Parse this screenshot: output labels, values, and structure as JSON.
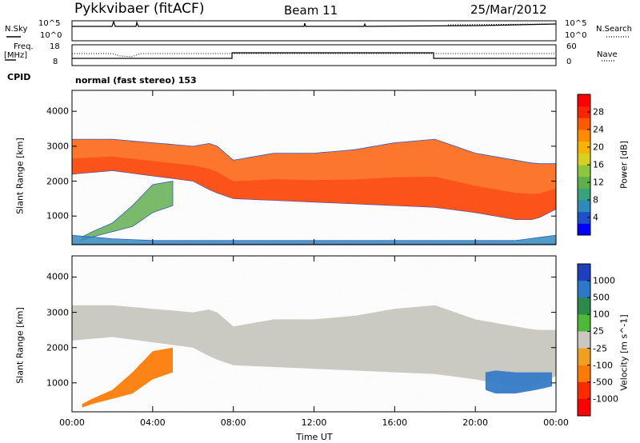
{
  "header": {
    "station": "Pykkvibaer (fitACF)",
    "beam": "Beam 11",
    "date": "25/Mar/2012"
  },
  "status_panel": {
    "nsky_label": "N.Sky",
    "nsearch_label": "N.Search",
    "power_ticks_left": [
      "10^5",
      "10^0"
    ],
    "power_ticks_right": [
      "10^5",
      "10^0"
    ],
    "freq_label": "Freq.",
    "freq_unit": "[MHz]",
    "freq_ticks": [
      "18",
      "8"
    ],
    "nave_label": "Nave",
    "nave_ticks": [
      "60",
      "0"
    ],
    "cpid_label": "CPID",
    "cpid_value": "normal (fast stereo) 153"
  },
  "chart_data": [
    {
      "type": "heatmap",
      "name": "power",
      "ylabel": "Slant Range [km]",
      "ylim": [
        180,
        4600
      ],
      "yticks": [
        1000,
        2000,
        3000,
        4000
      ],
      "xlim": [
        0,
        24
      ],
      "xticks": [
        "00:00",
        "04:00",
        "08:00",
        "12:00",
        "16:00",
        "20:00",
        "00:00"
      ],
      "colorbar": {
        "label": "Power [dB]",
        "ticks": [
          "28",
          "24",
          "20",
          "16",
          "12",
          "8",
          "4"
        ],
        "colors": [
          "#0000ff",
          "#1e4fc8",
          "#2e8ab8",
          "#3aa27a",
          "#5fae4a",
          "#8cc63e",
          "#d8d020",
          "#f4b400",
          "#ff8c00",
          "#ff5a00",
          "#ff2400",
          "#ff0000"
        ]
      },
      "bands": [
        {
          "label": "lower echo band",
          "time": [
            0.5,
            1,
            2,
            3,
            4,
            5
          ],
          "range_low": [
            300,
            400,
            550,
            700,
            1100,
            1300
          ],
          "range_high": [
            400,
            550,
            800,
            1300,
            1900,
            2000
          ],
          "power_db": 12
        },
        {
          "label": "main echo band",
          "time": [
            0,
            2,
            4,
            6,
            7,
            8,
            10,
            12,
            14,
            16,
            18,
            20,
            22,
            23,
            24
          ],
          "range_low": [
            2200,
            2300,
            2150,
            2000,
            1700,
            1500,
            1450,
            1400,
            1350,
            1300,
            1250,
            1100,
            900,
            900,
            1200
          ],
          "range_high": [
            3200,
            3200,
            3100,
            3000,
            3100,
            2600,
            2800,
            2800,
            2900,
            3100,
            3200,
            2800,
            2600,
            2500,
            2500
          ],
          "power_db": 26
        },
        {
          "label": "near-range echoes",
          "time": [
            0,
            2,
            4,
            6,
            8,
            10,
            12,
            14,
            16,
            18,
            20,
            22,
            24
          ],
          "range_low": [
            200,
            200,
            200,
            200,
            200,
            200,
            200,
            200,
            200,
            200,
            200,
            200,
            200
          ],
          "range_high": [
            450,
            350,
            300,
            300,
            300,
            300,
            300,
            300,
            300,
            300,
            300,
            300,
            450
          ],
          "power_db": 6
        }
      ]
    },
    {
      "type": "heatmap",
      "name": "velocity",
      "ylabel": "Slant Range [km]",
      "ylim": [
        180,
        4600
      ],
      "yticks": [
        1000,
        2000,
        3000,
        4000
      ],
      "xlabel": "Time UT",
      "xlim": [
        0,
        24
      ],
      "xticks": [
        "00:00",
        "04:00",
        "08:00",
        "12:00",
        "16:00",
        "20:00",
        "00:00"
      ],
      "colorbar": {
        "label": "Velocity [m s^-1]",
        "ticks": [
          "1000",
          "500",
          "100",
          "25",
          "-25",
          "-100",
          "-500",
          "-1000"
        ],
        "colors": [
          "#1f3fbf",
          "#2e78c8",
          "#2e8a4a",
          "#4fb83a",
          "#c8c8c0",
          "#f0a020",
          "#ff7a00",
          "#ff2a00",
          "#ff0000"
        ]
      },
      "bands": [
        {
          "label": "main ground scatter",
          "time": [
            0,
            2,
            4,
            6,
            7,
            8,
            10,
            12,
            14,
            16,
            18,
            20,
            22,
            23,
            24
          ],
          "range_low": [
            2200,
            2300,
            2150,
            2000,
            1700,
            1500,
            1450,
            1400,
            1350,
            1300,
            1250,
            1100,
            900,
            900,
            1200
          ],
          "range_high": [
            3200,
            3200,
            3100,
            3000,
            3100,
            2600,
            2800,
            2800,
            2900,
            3100,
            3200,
            2800,
            2600,
            2500,
            2500
          ],
          "velocity": 0
        },
        {
          "label": "lower echo band",
          "time": [
            0.5,
            1,
            2,
            3,
            4,
            5
          ],
          "range_low": [
            300,
            400,
            550,
            700,
            1100,
            1300
          ],
          "range_high": [
            400,
            550,
            800,
            1300,
            1900,
            2000
          ],
          "velocity": -150
        },
        {
          "label": "late night high-velocity patch",
          "time": [
            20.5,
            21,
            22,
            23,
            23.8
          ],
          "range_low": [
            800,
            700,
            700,
            800,
            900
          ],
          "range_high": [
            1300,
            1350,
            1300,
            1300,
            1300
          ],
          "velocity": 600
        }
      ]
    }
  ]
}
